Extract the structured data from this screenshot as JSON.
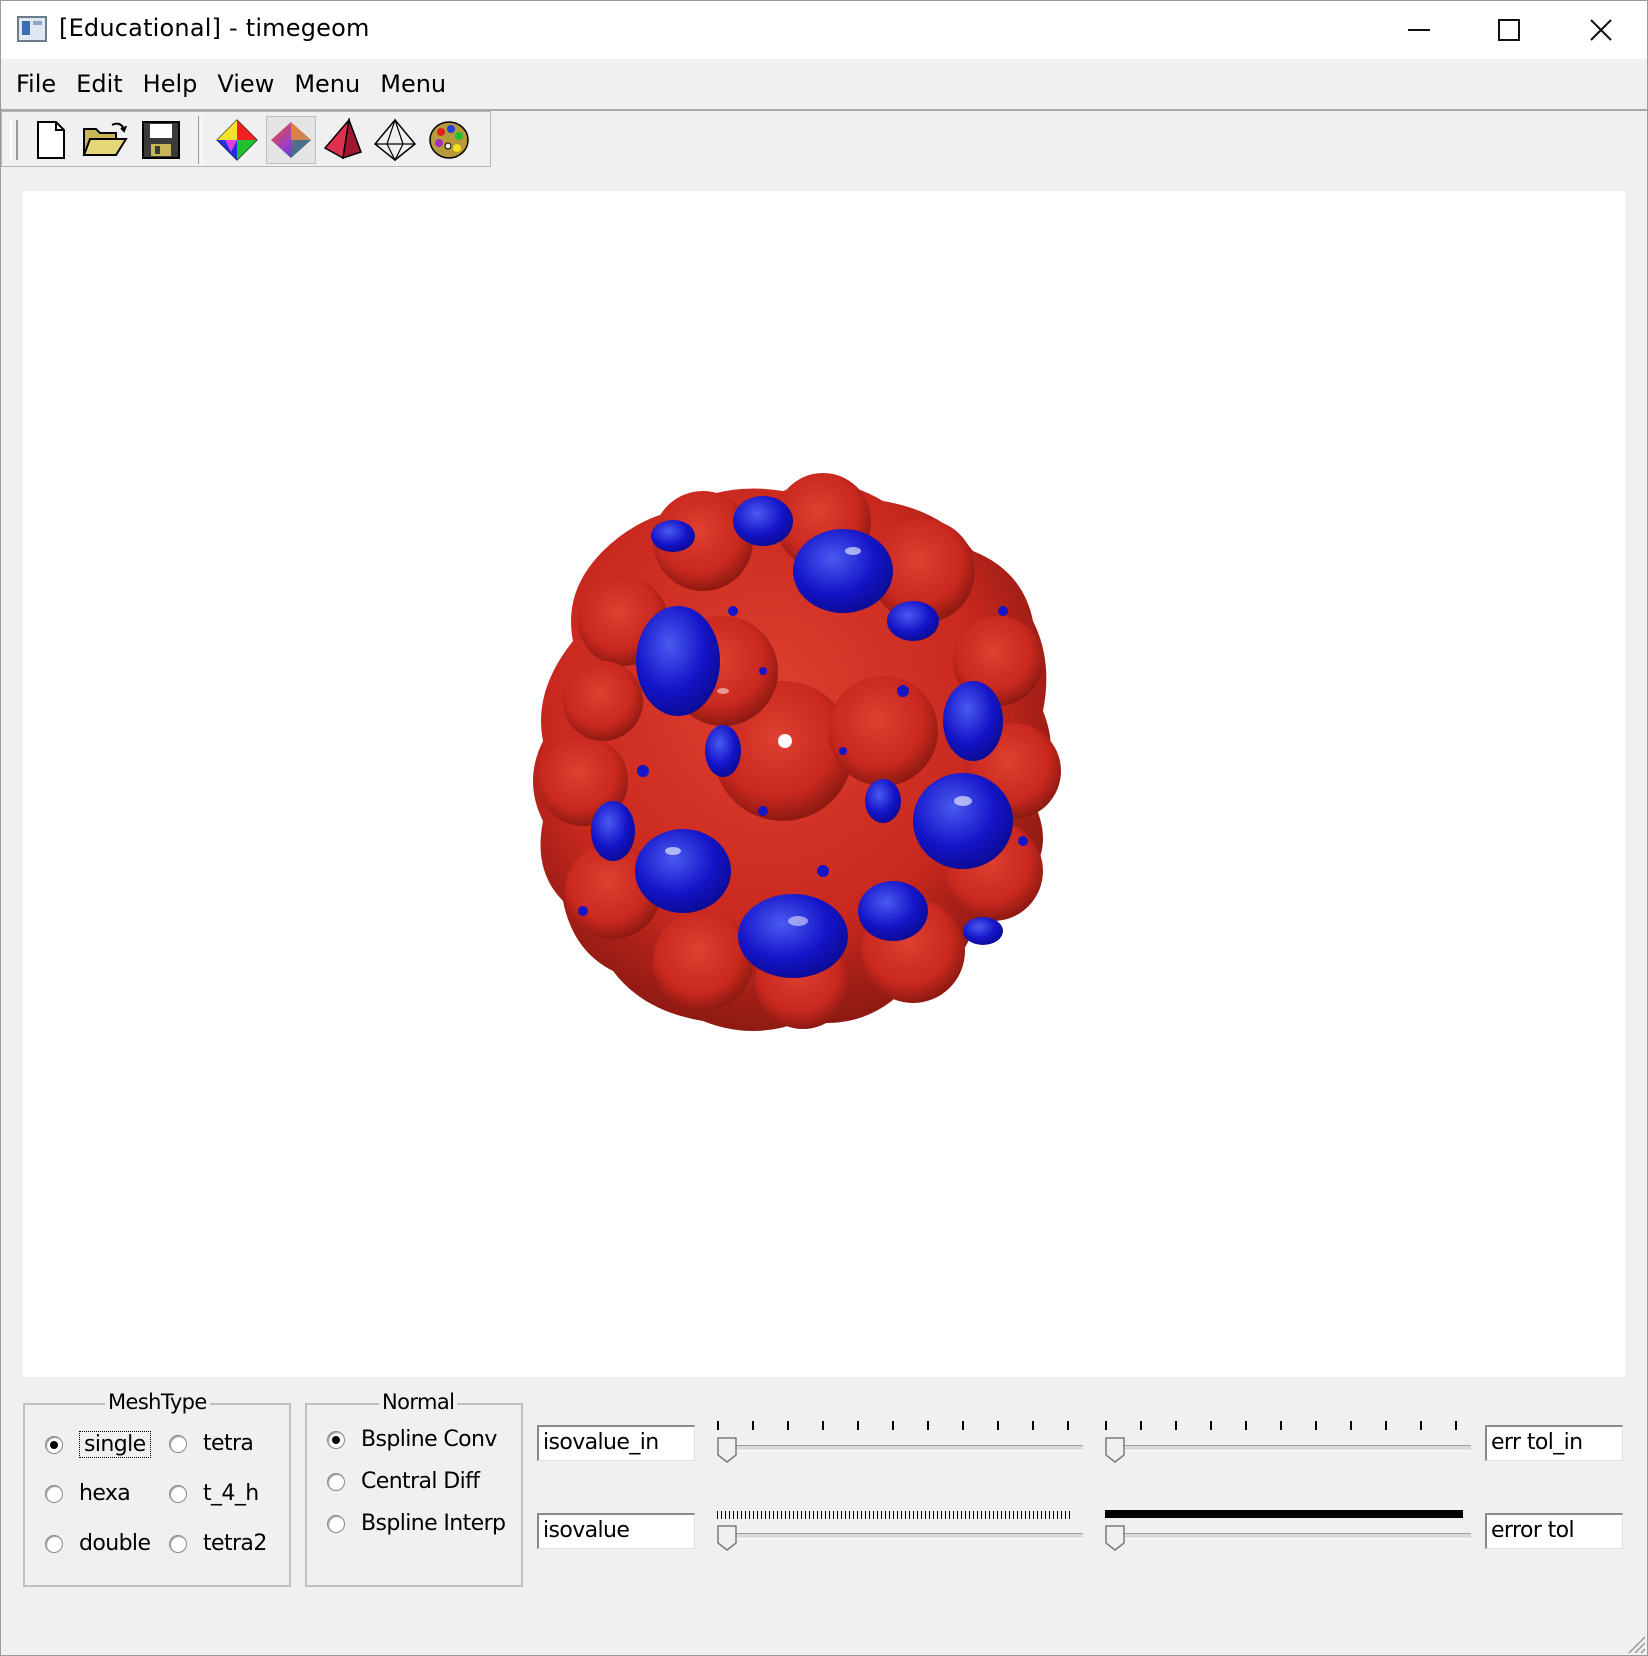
{
  "window": {
    "title": "[Educational] - timegeom"
  },
  "menubar": {
    "items": [
      "File",
      "Edit",
      "Help",
      "View",
      "Menu",
      "Menu"
    ]
  },
  "toolbar": {
    "buttons": [
      "new-file-icon",
      "open-folder-icon",
      "save-icon",
      "color-wheel-icon",
      "smooth-shading-icon",
      "solid-pyramid-icon",
      "wireframe-icon",
      "palette-icon"
    ]
  },
  "meshtype": {
    "title": "MeshType",
    "options": [
      "single",
      "tetra",
      "hexa",
      "t_4_h",
      "double",
      "tetra2"
    ],
    "selected": "single"
  },
  "normal": {
    "title": "Normal",
    "options": [
      "Bspline Conv",
      "Central Diff",
      "Bspline Interp"
    ],
    "selected": "Bspline Conv"
  },
  "controls": {
    "isovalue_in": "isovalue_in",
    "isovalue": "isovalue",
    "err_tol_in": "err tol_in",
    "error_tol": "error tol"
  },
  "sliders": {
    "isovalue_in": 0.0,
    "err_tol_in": 0.0,
    "isovalue": 0.0,
    "error_tol": 0.0
  },
  "colors": {
    "surface_red": "#c8281e",
    "surface_blue": "#1414c8"
  }
}
